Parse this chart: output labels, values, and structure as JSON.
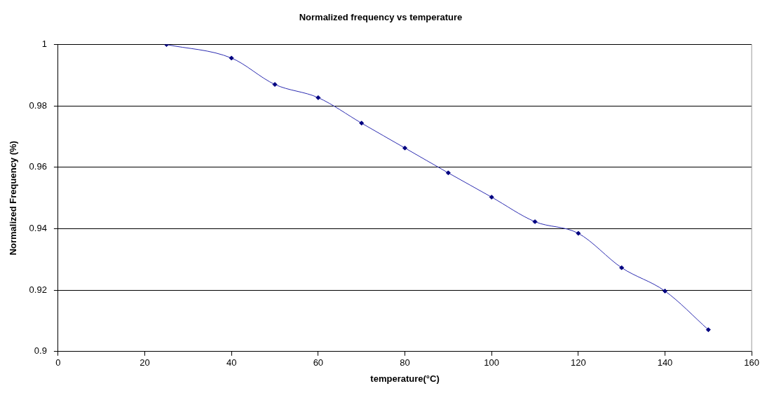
{
  "chart_data": {
    "type": "line",
    "title": "Normalized frequency vs temperature",
    "xlabel": "temperature(°C)",
    "ylabel": "Normalized Frequency (%)",
    "x": [
      25,
      40,
      50,
      60,
      70,
      80,
      90,
      100,
      110,
      120,
      130,
      140,
      150
    ],
    "series": [
      {
        "color": "#000080",
        "values": [
          1.0,
          0.9956,
          0.987,
          0.9827,
          0.9744,
          0.9663,
          0.9582,
          0.9503,
          0.9423,
          0.9385,
          0.9273,
          0.9197,
          0.9071
        ]
      }
    ],
    "xlim": [
      0,
      160
    ],
    "xticks": [
      0,
      20,
      40,
      60,
      80,
      100,
      120,
      140,
      160
    ],
    "ylim": [
      0.9,
      1
    ],
    "yticks": [
      0.9,
      0.92,
      0.94,
      0.96,
      0.98,
      1
    ],
    "grid": "y",
    "legend": false,
    "marker": "diamond",
    "line_style": "solid"
  }
}
